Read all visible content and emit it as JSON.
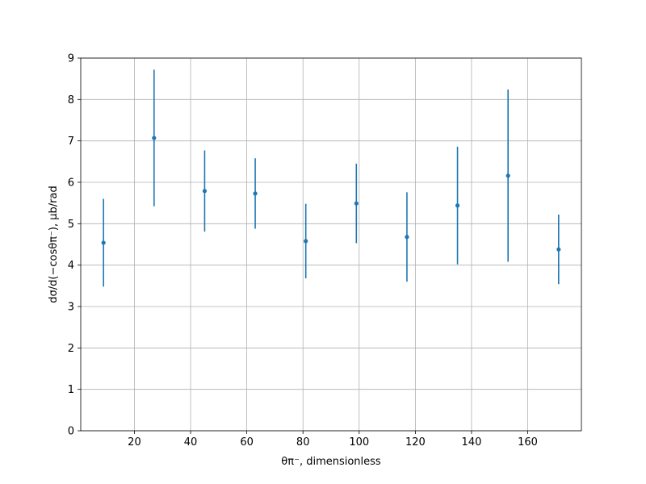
{
  "chart_data": {
    "type": "errorbar",
    "xlabel": "θπ⁻, dimensionless",
    "ylabel": "dσ/d(−cosθπ⁻), μb/rad",
    "x": [
      9,
      27,
      45,
      63,
      81,
      99,
      117,
      135,
      153,
      171
    ],
    "series": [
      {
        "color": "#1f77b4",
        "values": [
          4.54,
          7.07,
          5.79,
          5.73,
          4.58,
          5.49,
          4.68,
          5.44,
          6.16,
          4.38
        ],
        "errors": [
          1.06,
          1.65,
          0.98,
          0.85,
          0.9,
          0.96,
          1.08,
          1.42,
          2.08,
          0.84
        ]
      }
    ],
    "xlim": [
      0.9,
      179.1
    ],
    "xticks": [
      20,
      40,
      60,
      80,
      100,
      120,
      140,
      160
    ],
    "ylim": [
      0,
      9
    ],
    "yticks": [
      0,
      1,
      2,
      3,
      4,
      5,
      6,
      7,
      8,
      9
    ],
    "grid": true
  }
}
